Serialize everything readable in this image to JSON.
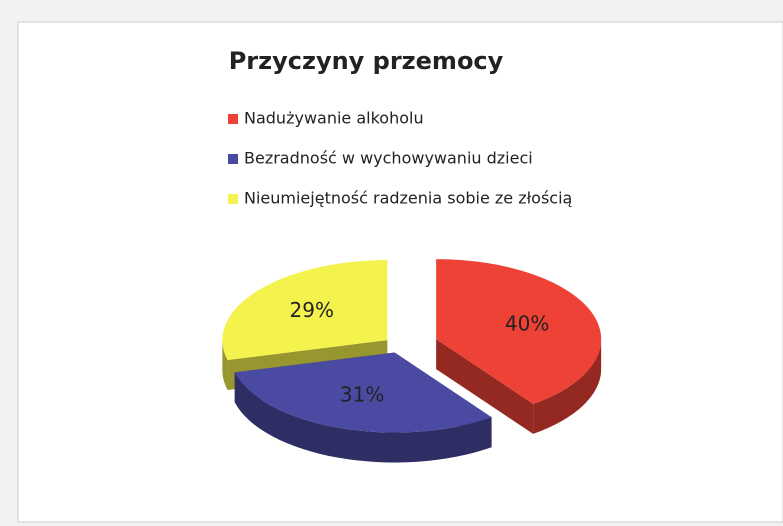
{
  "chart_data": {
    "type": "pie3d",
    "title": "Przyczyny przemocy",
    "categories": [
      "Nadużywanie alkoholu",
      "Bezradność w wychowywaniu dzieci",
      "Nieumiejętność radzenia sobie ze złością"
    ],
    "values": [
      40,
      31,
      29
    ],
    "value_labels": [
      "40%",
      "31%",
      "29%"
    ],
    "colors": [
      "#ee4237",
      "#4b4aa3",
      "#f4f24c"
    ],
    "legend": "top"
  }
}
